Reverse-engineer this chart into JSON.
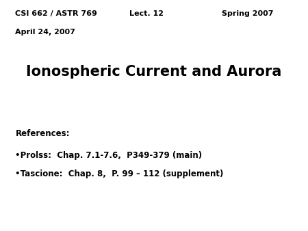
{
  "background_color": "#ffffff",
  "header_left": "CSI 662 / ASTR 769",
  "header_center": "Lect. 12",
  "header_right": "Spring 2007",
  "date_line": "April 24, 2007",
  "main_title": "Ionospheric Current and Aurora",
  "references_label": "References:",
  "bullet1": "•Prolss:  Chap. 7.1-7.6,  P349-379 (main)",
  "bullet2": "•Tascione:  Chap. 8,  P. 99 – 112 (supplement)",
  "header_fontsize": 8,
  "date_fontsize": 8,
  "title_fontsize": 15,
  "ref_fontsize": 8.5,
  "bullet_fontsize": 8.5,
  "text_color": "#000000"
}
